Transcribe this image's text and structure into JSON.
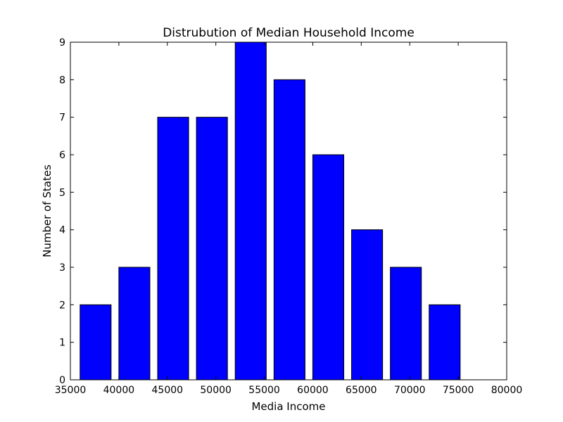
{
  "chart_data": {
    "type": "bar",
    "title": "Distrubution of Median Household Income",
    "xlabel": "Media Income",
    "ylabel": "Number of States",
    "bins": [
      {
        "start": 36000,
        "end": 40000,
        "value": 2
      },
      {
        "start": 40000,
        "end": 44000,
        "value": 3
      },
      {
        "start": 44000,
        "end": 48000,
        "value": 7
      },
      {
        "start": 48000,
        "end": 52000,
        "value": 7
      },
      {
        "start": 52000,
        "end": 56000,
        "value": 9
      },
      {
        "start": 56000,
        "end": 60000,
        "value": 8
      },
      {
        "start": 60000,
        "end": 64000,
        "value": 6
      },
      {
        "start": 64000,
        "end": 68000,
        "value": 4
      },
      {
        "start": 68000,
        "end": 72000,
        "value": 3
      },
      {
        "start": 72000,
        "end": 76000,
        "value": 2
      }
    ],
    "bar_width_fraction": 0.8,
    "xlim": [
      35000,
      80000
    ],
    "ylim": [
      0,
      9
    ],
    "xticks": [
      "35000",
      "40000",
      "45000",
      "50000",
      "55000",
      "60000",
      "65000",
      "70000",
      "75000",
      "80000"
    ],
    "yticks": [
      "0",
      "1",
      "2",
      "3",
      "4",
      "5",
      "6",
      "7",
      "8",
      "9"
    ],
    "bar_color": "#0000ff",
    "edge_color": "#000000",
    "grid": false,
    "legend": "none"
  }
}
